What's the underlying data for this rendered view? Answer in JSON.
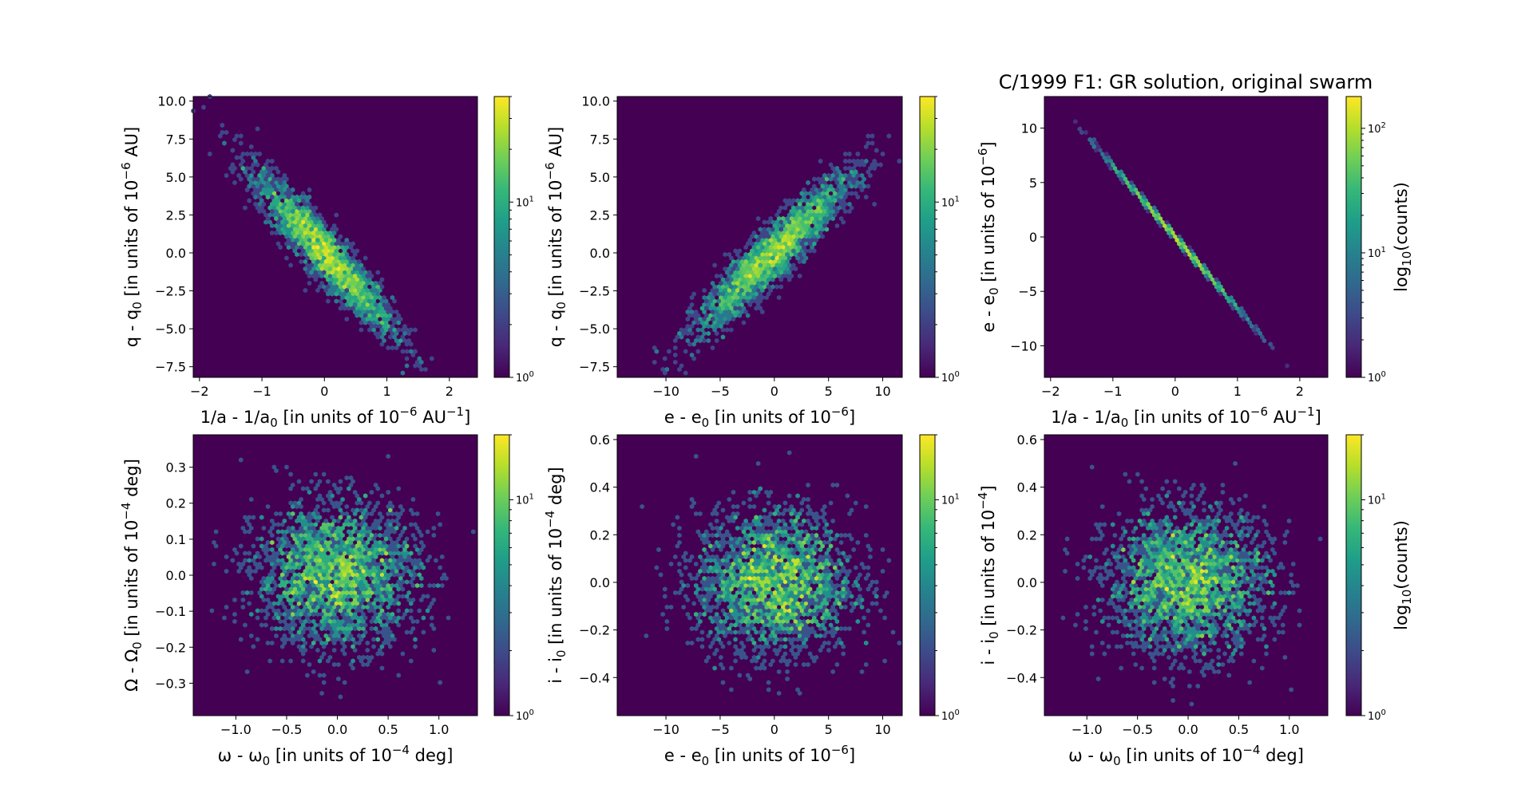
{
  "figure": {
    "title": "C/1999 F1: GR solution, original swarm",
    "colormap_colors": [
      "#440154",
      "#482878",
      "#3e4989",
      "#31688e",
      "#26828e",
      "#1f9e89",
      "#35b779",
      "#6ece58",
      "#b5de2b",
      "#fde725"
    ],
    "background_color": "#440154"
  },
  "chart_data": [
    {
      "type": "hexbin",
      "panel": "top-left",
      "xlabel_main": "1/a - 1/a",
      "xlabel_sub": "0",
      "xlabel_mid": " [in units of 10",
      "xlabel_sup": "−6",
      "xlabel_end": " AU",
      "xlabel_sup2": "−1",
      "xlabel_close": "]",
      "ylabel_main": "q - q",
      "ylabel_sub": "0",
      "ylabel_mid": " [in units of 10",
      "ylabel_sup": "−6",
      "ylabel_end": " AU]",
      "xlim": [
        -2.1,
        2.45
      ],
      "ylim": [
        -8.2,
        10.3
      ],
      "xticks": [
        -2,
        -1,
        0,
        1,
        2
      ],
      "xticklabels": [
        "−2",
        "−1",
        "0",
        "1",
        "2"
      ],
      "yticks": [
        -7.5,
        -5.0,
        -2.5,
        0.0,
        2.5,
        5.0,
        7.5,
        10.0
      ],
      "yticklabels": [
        "−7.5",
        "−5.0",
        "−2.5",
        "0.0",
        "2.5",
        "5.0",
        "7.5",
        "10.0"
      ],
      "distribution": {
        "center": [
          0,
          0
        ],
        "sigma": [
          0.55,
          2.6
        ],
        "correlation": -0.93
      },
      "colorbar": {
        "scale": "log",
        "range": [
          1,
          40
        ],
        "ticks": [
          {
            "value": 1,
            "label": "10",
            "sup": "0"
          },
          {
            "value": 10,
            "label": "10",
            "sup": "1"
          }
        ],
        "label": ""
      }
    },
    {
      "type": "hexbin",
      "panel": "top-middle",
      "xlabel_main": "e - e",
      "xlabel_sub": "0",
      "xlabel_mid": " [in units of 10",
      "xlabel_sup": "−6",
      "xlabel_end": "]",
      "xlabel_sup2": "",
      "xlabel_close": "",
      "ylabel_main": "q - q",
      "ylabel_sub": "0",
      "ylabel_mid": " [in units of 10",
      "ylabel_sup": "−6",
      "ylabel_end": " AU]",
      "xlim": [
        -14.5,
        11.8
      ],
      "ylim": [
        -8.2,
        10.3
      ],
      "xticks": [
        -10,
        -5,
        0,
        5,
        10
      ],
      "xticklabels": [
        "−10",
        "−5",
        "0",
        "5",
        "10"
      ],
      "yticks": [
        -7.5,
        -5.0,
        -2.5,
        0.0,
        2.5,
        5.0,
        7.5,
        10.0
      ],
      "yticklabels": [
        "−7.5",
        "−5.0",
        "−2.5",
        "0.0",
        "2.5",
        "5.0",
        "7.5",
        "10.0"
      ],
      "distribution": {
        "center": [
          0,
          0
        ],
        "sigma": [
          3.6,
          2.6
        ],
        "correlation": 0.93
      },
      "colorbar": {
        "scale": "log",
        "range": [
          1,
          40
        ],
        "ticks": [
          {
            "value": 1,
            "label": "10",
            "sup": "0"
          },
          {
            "value": 10,
            "label": "10",
            "sup": "1"
          }
        ],
        "label": ""
      }
    },
    {
      "type": "hexbin",
      "panel": "top-right",
      "xlabel_main": "1/a - 1/a",
      "xlabel_sub": "0",
      "xlabel_mid": " [in units of 10",
      "xlabel_sup": "−6",
      "xlabel_end": " AU",
      "xlabel_sup2": "−1",
      "xlabel_close": "]",
      "ylabel_main": "e - e",
      "ylabel_sub": "0",
      "ylabel_mid": " [in units of 10",
      "ylabel_sup": "−6",
      "ylabel_end": "]",
      "xlim": [
        -2.1,
        2.45
      ],
      "ylim": [
        -12.9,
        12.9
      ],
      "xticks": [
        -2,
        -1,
        0,
        1,
        2
      ],
      "xticklabels": [
        "−2",
        "−1",
        "0",
        "1",
        "2"
      ],
      "yticks": [
        -10,
        -5,
        0,
        5,
        10
      ],
      "yticklabels": [
        "−10",
        "−5",
        "0",
        "5",
        "10"
      ],
      "distribution": {
        "center": [
          0,
          0
        ],
        "sigma": [
          0.55,
          3.6
        ],
        "correlation": -0.9995
      },
      "colorbar": {
        "scale": "log",
        "range": [
          1,
          180
        ],
        "ticks": [
          {
            "value": 1,
            "label": "10",
            "sup": "0"
          },
          {
            "value": 10,
            "label": "10",
            "sup": "1"
          },
          {
            "value": 100,
            "label": "10",
            "sup": "2"
          }
        ],
        "label_main": "log",
        "label_sub": "10",
        "label_end": "(counts)"
      }
    },
    {
      "type": "hexbin",
      "panel": "bottom-left",
      "xlabel_main": "ω - ω",
      "xlabel_sub": "0",
      "xlabel_mid": " [in units of 10",
      "xlabel_sup": "−4",
      "xlabel_end": " deg]",
      "xlabel_sup2": "",
      "xlabel_close": "",
      "ylabel_main": "Ω - Ω",
      "ylabel_sub": "0",
      "ylabel_mid": " [in units of 10",
      "ylabel_sup": "−4",
      "ylabel_end": " deg]",
      "xlim": [
        -1.42,
        1.38
      ],
      "ylim": [
        -0.39,
        0.39
      ],
      "xticks": [
        -1.0,
        -0.5,
        0.0,
        0.5,
        1.0
      ],
      "xticklabels": [
        "−1.0",
        "−0.5",
        "0.0",
        "0.5",
        "1.0"
      ],
      "yticks": [
        -0.3,
        -0.2,
        -0.1,
        0.0,
        0.1,
        0.2,
        0.3
      ],
      "yticklabels": [
        "−0.3",
        "−0.2",
        "−0.1",
        "0.0",
        "0.1",
        "0.2",
        "0.3"
      ],
      "distribution": {
        "center": [
          0,
          0
        ],
        "sigma": [
          0.4,
          0.1
        ],
        "correlation": 0.0
      },
      "colorbar": {
        "scale": "log",
        "range": [
          1,
          20
        ],
        "ticks": [
          {
            "value": 1,
            "label": "10",
            "sup": "0"
          },
          {
            "value": 10,
            "label": "10",
            "sup": "1"
          }
        ],
        "label": ""
      }
    },
    {
      "type": "hexbin",
      "panel": "bottom-middle",
      "xlabel_main": "e - e",
      "xlabel_sub": "0",
      "xlabel_mid": " [in units of 10",
      "xlabel_sup": "−6",
      "xlabel_end": "]",
      "xlabel_sup2": "",
      "xlabel_close": "",
      "ylabel_main": "i - i",
      "ylabel_sub": "0",
      "ylabel_mid": " [in units of 10",
      "ylabel_sup": "−4",
      "ylabel_end": " deg]",
      "xlim": [
        -14.5,
        11.8
      ],
      "ylim": [
        -0.56,
        0.62
      ],
      "xticks": [
        -10,
        -5,
        0,
        5,
        10
      ],
      "xticklabels": [
        "−10",
        "−5",
        "0",
        "5",
        "10"
      ],
      "yticks": [
        -0.4,
        -0.2,
        0.0,
        0.2,
        0.4,
        0.6
      ],
      "yticklabels": [
        "−0.4",
        "−0.2",
        "0.0",
        "0.2",
        "0.4",
        "0.6"
      ],
      "distribution": {
        "center": [
          0,
          0
        ],
        "sigma": [
          3.6,
          0.15
        ],
        "correlation": 0.0
      },
      "colorbar": {
        "scale": "log",
        "range": [
          1,
          20
        ],
        "ticks": [
          {
            "value": 1,
            "label": "10",
            "sup": "0"
          },
          {
            "value": 10,
            "label": "10",
            "sup": "1"
          }
        ],
        "label": ""
      }
    },
    {
      "type": "hexbin",
      "panel": "bottom-right",
      "xlabel_main": "ω - ω",
      "xlabel_sub": "0",
      "xlabel_mid": " [in units of 10",
      "xlabel_sup": "−4",
      "xlabel_end": " deg]",
      "xlabel_sup2": "",
      "xlabel_close": "",
      "ylabel_main": "i - i",
      "ylabel_sub": "0",
      "ylabel_mid": " [in units of 10",
      "ylabel_sup": "−4",
      "ylabel_end": "]",
      "xlim": [
        -1.42,
        1.38
      ],
      "ylim": [
        -0.56,
        0.62
      ],
      "xticks": [
        -1.0,
        -0.5,
        0.0,
        0.5,
        1.0
      ],
      "xticklabels": [
        "−1.0",
        "−0.5",
        "0.0",
        "0.5",
        "1.0"
      ],
      "yticks": [
        -0.4,
        -0.2,
        0.0,
        0.2,
        0.4,
        0.6
      ],
      "yticklabels": [
        "−0.4",
        "−0.2",
        "0.0",
        "0.2",
        "0.4",
        "0.6"
      ],
      "distribution": {
        "center": [
          0,
          0
        ],
        "sigma": [
          0.4,
          0.15
        ],
        "correlation": 0.0
      },
      "colorbar": {
        "scale": "log",
        "range": [
          1,
          20
        ],
        "ticks": [
          {
            "value": 1,
            "label": "10",
            "sup": "0"
          },
          {
            "value": 10,
            "label": "10",
            "sup": "1"
          }
        ],
        "label_main": "log",
        "label_sub": "10",
        "label_end": "(counts)"
      }
    }
  ]
}
